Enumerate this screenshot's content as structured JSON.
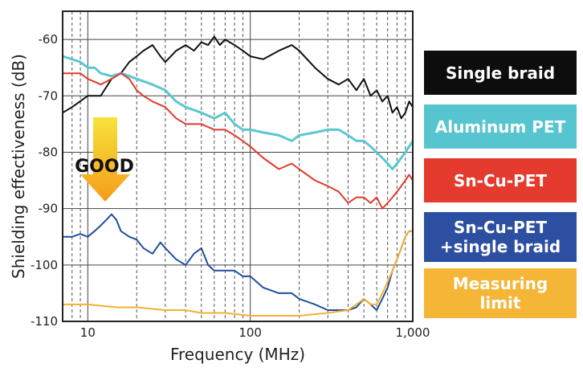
{
  "chart_data": {
    "type": "line",
    "xlabel": "Frequency (MHz)",
    "ylabel": "Shielding effectiveness (dB)",
    "x_scale": "log",
    "xlim": [
      7,
      1000
    ],
    "ylim": [
      -110,
      -55
    ],
    "x_ticks": [
      {
        "value": 10,
        "label": "10"
      },
      {
        "value": 100,
        "label": "100"
      },
      {
        "value": 1000,
        "label": "1,000"
      }
    ],
    "y_ticks": [
      {
        "value": -60,
        "label": "-60"
      },
      {
        "value": -70,
        "label": "-70"
      },
      {
        "value": -80,
        "label": "-80"
      },
      {
        "value": -90,
        "label": "-90"
      },
      {
        "value": -100,
        "label": "-100"
      },
      {
        "value": -110,
        "label": "-110"
      }
    ],
    "grid": true,
    "annotation": "GOOD",
    "series": [
      {
        "name": "Single braid",
        "color": "#111111",
        "box_color": "#0d0d0d",
        "x": [
          7,
          8,
          10,
          12,
          14,
          16,
          18,
          20,
          22,
          25,
          28,
          30,
          35,
          40,
          45,
          50,
          55,
          60,
          65,
          70,
          80,
          90,
          100,
          120,
          150,
          180,
          200,
          250,
          300,
          350,
          400,
          450,
          500,
          550,
          600,
          650,
          700,
          750,
          800,
          850,
          900,
          950,
          1000
        ],
        "y": [
          -73,
          -72,
          -70,
          -70,
          -67,
          -66,
          -64,
          -63,
          -62,
          -61,
          -63,
          -64,
          -62,
          -61,
          -62,
          -60.5,
          -61,
          -59.5,
          -61,
          -60,
          -61,
          -62,
          -63,
          -63.5,
          -62,
          -61,
          -62,
          -65,
          -67,
          -68,
          -67,
          -69,
          -67,
          -70,
          -69,
          -71,
          -70,
          -73,
          -72,
          -74,
          -73,
          -71,
          -72
        ]
      },
      {
        "name": "Aluminum PET",
        "color": "#5bc8d0",
        "box_color": "#57c5cf",
        "x": [
          7,
          8,
          9,
          10,
          11,
          12,
          14,
          16,
          18,
          20,
          25,
          30,
          35,
          40,
          50,
          60,
          70,
          80,
          90,
          100,
          120,
          150,
          180,
          200,
          250,
          300,
          350,
          400,
          450,
          500,
          550,
          600,
          650,
          700,
          750,
          800,
          850,
          900,
          950,
          1000
        ],
        "y": [
          -63,
          -63.5,
          -64,
          -65,
          -65,
          -66,
          -66.5,
          -66,
          -66.5,
          -67,
          -68,
          -69,
          -71,
          -72,
          -73,
          -74,
          -73,
          -75,
          -76,
          -76,
          -76.5,
          -77,
          -78,
          -77,
          -76.5,
          -76,
          -76,
          -77,
          -78,
          -78,
          -79,
          -80,
          -81,
          -82,
          -83,
          -82,
          -81,
          -80,
          -79,
          -78
        ]
      },
      {
        "name": "Sn-Cu-PET",
        "color": "#e03a2e",
        "box_color": "#e53b2f",
        "x": [
          7,
          8,
          9,
          10,
          11,
          12,
          14,
          16,
          18,
          20,
          22,
          25,
          30,
          35,
          40,
          50,
          60,
          70,
          80,
          90,
          100,
          120,
          150,
          180,
          200,
          250,
          300,
          350,
          400,
          450,
          500,
          550,
          600,
          650,
          700,
          750,
          800,
          850,
          900,
          950,
          1000
        ],
        "y": [
          -66,
          -66,
          -66,
          -67,
          -67.5,
          -68,
          -67,
          -66,
          -67,
          -69,
          -70,
          -71,
          -72,
          -74,
          -75,
          -75,
          -76,
          -76,
          -77,
          -78,
          -79,
          -81,
          -83,
          -82,
          -83,
          -85,
          -86,
          -87,
          -89,
          -88,
          -88,
          -89,
          -88,
          -90,
          -89,
          -88,
          -87,
          -86,
          -85,
          -84,
          -85
        ]
      },
      {
        "name": "Sn-Cu-PET\n+single braid",
        "color": "#1f4f9e",
        "box_color": "#2d4fa2",
        "x": [
          7,
          8,
          9,
          10,
          11,
          12,
          13,
          14,
          15,
          16,
          18,
          20,
          22,
          25,
          28,
          30,
          35,
          40,
          45,
          50,
          55,
          60,
          70,
          80,
          90,
          100,
          120,
          150,
          180,
          200,
          250,
          300,
          350,
          400,
          450,
          500,
          550,
          600,
          650,
          700,
          750,
          800,
          850,
          900,
          950,
          1000
        ],
        "y": [
          -95,
          -95,
          -94.5,
          -95,
          -94,
          -93,
          -92,
          -91,
          -92,
          -94,
          -95,
          -95.5,
          -97,
          -98,
          -96,
          -97,
          -99,
          -100,
          -98,
          -97,
          -100,
          -101,
          -101,
          -101,
          -102,
          -102,
          -104,
          -105,
          -105,
          -106,
          -107,
          -108,
          -108,
          -108,
          -107.5,
          -106,
          -107,
          -108,
          -106,
          -104,
          -101,
          -99,
          -97,
          -95,
          -94,
          -94
        ]
      },
      {
        "name": "Measuring\nlimit",
        "color": "#f2b233",
        "box_color": "#f5b536",
        "x": [
          7,
          10,
          15,
          20,
          30,
          40,
          50,
          70,
          100,
          150,
          200,
          300,
          400,
          450,
          500,
          550,
          600,
          650,
          700,
          750,
          800,
          850,
          900,
          950,
          1000
        ],
        "y": [
          -107,
          -107,
          -107.5,
          -107.5,
          -108,
          -108,
          -108.5,
          -108.5,
          -109,
          -109,
          -109,
          -108.5,
          -108,
          -107,
          -106,
          -107,
          -107,
          -105,
          -103,
          -101,
          -99,
          -97,
          -95,
          -94,
          -94
        ]
      }
    ]
  }
}
